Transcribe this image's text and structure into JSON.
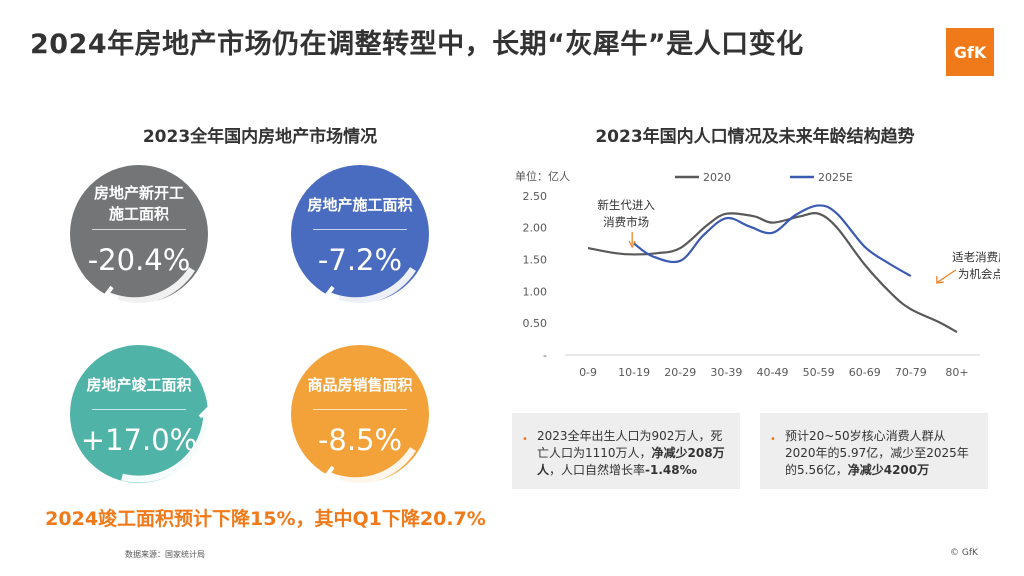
{
  "header": {
    "title": "2024年房地产市场仍在调整转型中，长期“灰犀牛”是人口变化",
    "logo_text": "GfK"
  },
  "left_panel": {
    "subtitle": "2023全年国内房地产市场情况",
    "metrics": [
      {
        "label_line1": "房地产新开工",
        "label_line2": "施工面积",
        "value": "-20.4%",
        "color": "#737577"
      },
      {
        "label_line1": "房地产施工面积",
        "label_line2": "",
        "value": "-7.2%",
        "color": "#4a6cc0"
      },
      {
        "label_line1": "房地产竣工面积",
        "label_line2": "",
        "value": "+17.0%",
        "color": "#4fb3a7"
      },
      {
        "label_line1": "商品房销售面积",
        "label_line2": "",
        "value": "-8.5%",
        "color": "#f3a23a"
      }
    ],
    "forecast": "2024竣工面积预计下降15%，其中Q1下降20.7%"
  },
  "right_panel": {
    "subtitle": "2023年国内人口情况及未来年龄结构趋势",
    "notes": [
      {
        "bullet": "•",
        "text_a": "2023全年出生人口为902万人，死亡人口为1110万人，",
        "text_bold_a": "净减少208万人",
        "text_b": "，人口自然增长率",
        "text_bold_b": "-1.48‰"
      },
      {
        "bullet": "•",
        "text_a": "预计20~50岁核心消费人群从2020年的5.97亿，减少至2025年的5.56亿，",
        "text_bold_a": "净减少4200万",
        "text_b": "",
        "text_bold_b": ""
      }
    ]
  },
  "chart_data": {
    "type": "line",
    "title": "2023年国内人口情况及未来年龄结构趋势",
    "unit_label": "单位：亿人",
    "categories": [
      "0-9",
      "10-19",
      "20-29",
      "30-39",
      "40-49",
      "50-59",
      "60-69",
      "70-79",
      "80+"
    ],
    "y_ticks": [
      "-",
      "0.50",
      "1.00",
      "1.50",
      "2.00",
      "2.50"
    ],
    "ylim": [
      0,
      2.75
    ],
    "series": [
      {
        "name": "2020",
        "color": "#595959",
        "x": [
          0,
          0.6,
          1,
          1.5,
          2,
          2.6,
          3,
          3.6,
          4,
          4.6,
          5,
          5.4,
          6,
          6.6,
          7,
          7.6,
          8
        ],
        "values": [
          1.68,
          1.6,
          1.58,
          1.6,
          1.68,
          2.05,
          2.22,
          2.18,
          2.08,
          2.18,
          2.22,
          2.0,
          1.42,
          0.95,
          0.72,
          0.52,
          0.36
        ]
      },
      {
        "name": "2025E",
        "color": "#3a5ab4",
        "x": [
          1,
          1.4,
          2,
          2.5,
          3,
          3.5,
          4,
          4.5,
          5,
          5.4,
          6,
          6.5,
          7
        ],
        "values": [
          1.75,
          1.55,
          1.48,
          1.88,
          2.15,
          2.02,
          1.92,
          2.2,
          2.35,
          2.22,
          1.7,
          1.45,
          1.24
        ]
      }
    ],
    "annotations": [
      {
        "text_line1": "新生代进入",
        "text_line2": "消费市场"
      },
      {
        "text_line1": "适老消费成",
        "text_line2": "为机会点"
      }
    ]
  },
  "footer": {
    "source": "数据来源：国家统计局",
    "copyright": "© GfK"
  }
}
